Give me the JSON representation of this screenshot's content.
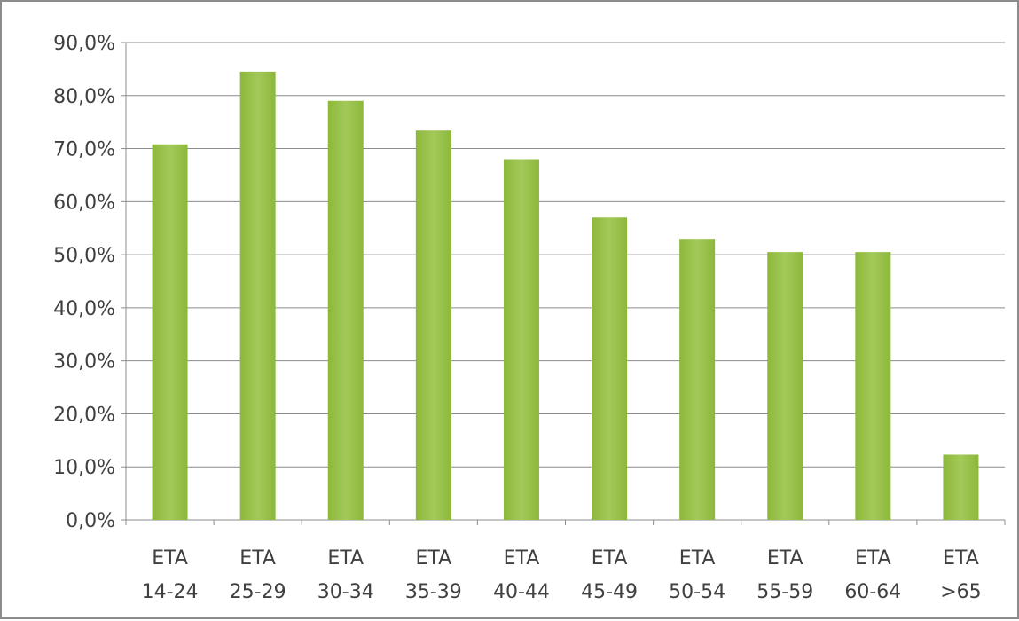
{
  "chart_data": {
    "type": "bar",
    "categories": [
      [
        "ETA",
        "14-24"
      ],
      [
        "ETA",
        "25-29"
      ],
      [
        "ETA",
        "30-34"
      ],
      [
        "ETA",
        "35-39"
      ],
      [
        "ETA",
        "40-44"
      ],
      [
        "ETA",
        "45-49"
      ],
      [
        "ETA",
        "50-54"
      ],
      [
        "ETA",
        "55-59"
      ],
      [
        "ETA",
        "60-64"
      ],
      [
        "ETA",
        ">65"
      ]
    ],
    "values": [
      70.8,
      84.5,
      79.0,
      73.4,
      68.0,
      57.0,
      53.0,
      50.5,
      50.5,
      12.3
    ],
    "yticks": [
      "0,0%",
      "10,0%",
      "20,0%",
      "30,0%",
      "40,0%",
      "50,0%",
      "60,0%",
      "70,0%",
      "80,0%",
      "90,0%"
    ],
    "ylim": [
      0,
      90
    ],
    "grid": true,
    "legend": "none",
    "bar_color": "#8cb83a",
    "bar_color_light": "#a3c95a"
  }
}
